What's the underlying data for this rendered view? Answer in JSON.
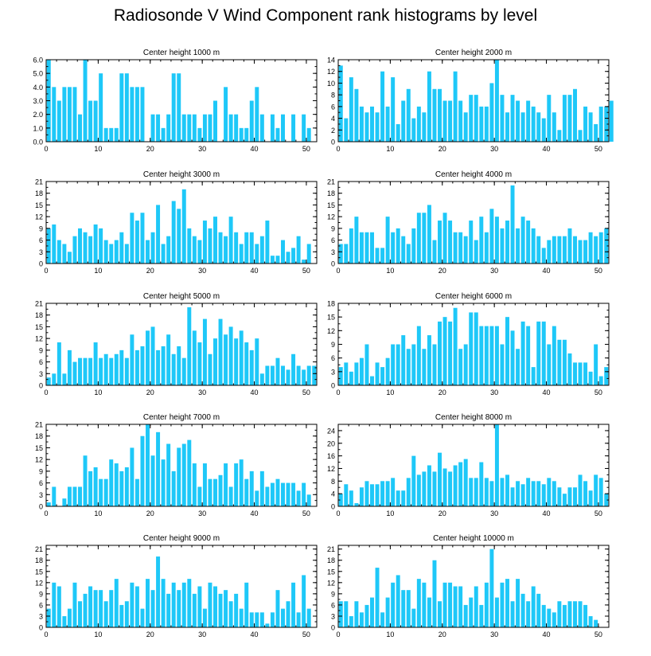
{
  "title": "Radiosonde V Wind Component rank histograms by level",
  "bar_color": "#1ec8f8",
  "chart_data": [
    {
      "type": "bar",
      "title": "Center height 1000 m",
      "xlabel": "",
      "ylabel": "",
      "xlim": [
        0,
        52
      ],
      "ylim": [
        0,
        6
      ],
      "yticks": [
        0,
        1,
        2,
        3,
        4,
        5,
        6
      ],
      "ytick_labels": [
        "0.0",
        "1.0",
        "2.0",
        "3.0",
        "4.0",
        "5.0",
        "6.0"
      ],
      "xticks": [
        0,
        10,
        20,
        30,
        40,
        50
      ],
      "values": [
        6,
        4,
        3,
        4,
        4,
        4,
        2,
        6,
        3,
        3,
        5,
        1,
        1,
        1,
        5,
        5,
        4,
        4,
        4,
        0,
        2,
        2,
        1,
        2,
        5,
        5,
        2,
        2,
        2,
        1,
        2,
        2,
        3,
        0,
        4,
        2,
        2,
        1,
        1,
        3,
        4,
        2,
        0,
        2,
        1,
        2,
        0,
        2,
        0,
        2,
        1
      ]
    },
    {
      "type": "bar",
      "title": "Center height 2000 m",
      "xlabel": "",
      "ylabel": "",
      "xlim": [
        0,
        52
      ],
      "ylim": [
        0,
        14
      ],
      "yticks": [
        0,
        2,
        4,
        6,
        8,
        10,
        12,
        14
      ],
      "ytick_labels": [
        "0",
        "2",
        "4",
        "6",
        "8",
        "10",
        "12",
        "14"
      ],
      "xticks": [
        0,
        10,
        20,
        30,
        40,
        50
      ],
      "values": [
        13,
        4,
        11,
        9,
        6,
        5,
        6,
        5,
        12,
        6,
        11,
        3,
        7,
        9,
        4,
        6,
        5,
        12,
        9,
        9,
        7,
        7,
        12,
        7,
        5,
        8,
        8,
        6,
        6,
        10,
        14,
        8,
        5,
        8,
        7,
        5,
        7,
        6,
        5,
        4,
        8,
        5,
        2,
        8,
        8,
        9,
        2,
        6,
        5,
        3,
        6,
        6,
        7
      ]
    },
    {
      "type": "bar",
      "title": "Center height 3000 m",
      "xlabel": "",
      "ylabel": "",
      "xlim": [
        0,
        52
      ],
      "ylim": [
        0,
        21
      ],
      "yticks": [
        0,
        3,
        6,
        9,
        12,
        15,
        18,
        21
      ],
      "ytick_labels": [
        "0",
        "3",
        "6",
        "9",
        "12",
        "15",
        "18",
        "21"
      ],
      "xticks": [
        0,
        10,
        20,
        30,
        40,
        50
      ],
      "values": [
        9,
        10,
        6,
        5,
        3,
        7,
        9,
        8,
        7,
        10,
        9,
        6,
        5,
        6,
        8,
        5,
        13,
        11,
        13,
        6,
        8,
        15,
        5,
        7,
        16,
        14,
        19,
        9,
        7,
        6,
        11,
        9,
        12,
        8,
        7,
        12,
        8,
        5,
        8,
        8,
        5,
        7,
        11,
        2,
        2,
        6,
        3,
        4,
        7,
        1,
        5
      ]
    },
    {
      "type": "bar",
      "title": "Center height 4000 m",
      "xlabel": "",
      "ylabel": "",
      "xlim": [
        0,
        52
      ],
      "ylim": [
        0,
        21
      ],
      "yticks": [
        0,
        3,
        6,
        9,
        12,
        15,
        18,
        21
      ],
      "ytick_labels": [
        "0",
        "3",
        "6",
        "9",
        "12",
        "15",
        "18",
        "21"
      ],
      "xticks": [
        0,
        10,
        20,
        30,
        40,
        50
      ],
      "values": [
        5,
        5,
        9,
        12,
        8,
        8,
        8,
        4,
        4,
        12,
        8,
        9,
        7,
        5,
        9,
        13,
        13,
        15,
        6,
        11,
        13,
        11,
        8,
        8,
        7,
        11,
        6,
        12,
        8,
        14,
        12,
        9,
        11,
        20,
        9,
        12,
        11,
        9,
        7,
        4,
        6,
        7,
        7,
        7,
        9,
        7,
        6,
        6,
        8,
        7,
        8,
        9
      ]
    },
    {
      "type": "bar",
      "title": "Center height 5000 m",
      "xlabel": "",
      "ylabel": "",
      "xlim": [
        0,
        52
      ],
      "ylim": [
        0,
        21
      ],
      "yticks": [
        0,
        3,
        6,
        9,
        12,
        15,
        18,
        21
      ],
      "ytick_labels": [
        "0",
        "3",
        "6",
        "9",
        "12",
        "15",
        "18",
        "21"
      ],
      "xticks": [
        0,
        10,
        20,
        30,
        40,
        50
      ],
      "values": [
        2,
        3,
        11,
        3,
        9,
        6,
        7,
        7,
        7,
        11,
        7,
        8,
        7,
        8,
        9,
        7,
        13,
        9,
        10,
        14,
        15,
        9,
        10,
        13,
        8,
        10,
        7,
        20,
        14,
        11,
        17,
        8,
        12,
        17,
        13,
        15,
        12,
        14,
        11,
        9,
        12,
        3,
        5,
        5,
        7,
        5,
        4,
        8,
        5,
        4,
        5,
        5
      ]
    },
    {
      "type": "bar",
      "title": "Center height 6000 m",
      "xlabel": "",
      "ylabel": "",
      "xlim": [
        0,
        52
      ],
      "ylim": [
        0,
        18
      ],
      "yticks": [
        0,
        3,
        6,
        9,
        12,
        15,
        18
      ],
      "ytick_labels": [
        "0",
        "3",
        "6",
        "9",
        "12",
        "15",
        "18"
      ],
      "xticks": [
        0,
        10,
        20,
        30,
        40,
        50
      ],
      "values": [
        4,
        5,
        3,
        5,
        6,
        9,
        2,
        5,
        4,
        6,
        9,
        9,
        11,
        8,
        9,
        13,
        8,
        11,
        9,
        14,
        15,
        14,
        17,
        8,
        9,
        16,
        16,
        13,
        13,
        13,
        13,
        9,
        15,
        12,
        8,
        14,
        13,
        4,
        14,
        14,
        9,
        13,
        10,
        10,
        7,
        5,
        5,
        5,
        3,
        9,
        2,
        4
      ]
    },
    {
      "type": "bar",
      "title": "Center height 7000 m",
      "xlabel": "",
      "ylabel": "",
      "xlim": [
        0,
        52
      ],
      "ylim": [
        0,
        21
      ],
      "yticks": [
        0,
        3,
        6,
        9,
        12,
        15,
        18,
        21
      ],
      "ytick_labels": [
        "0",
        "3",
        "6",
        "9",
        "12",
        "15",
        "18",
        "21"
      ],
      "xticks": [
        0,
        10,
        20,
        30,
        40,
        50
      ],
      "values": [
        1,
        5,
        0,
        2,
        5,
        5,
        5,
        13,
        9,
        10,
        7,
        7,
        12,
        11,
        9,
        10,
        15,
        7,
        18,
        21,
        13,
        19,
        12,
        16,
        9,
        15,
        16,
        17,
        11,
        5,
        11,
        7,
        7,
        8,
        11,
        5,
        11,
        12,
        7,
        9,
        4,
        9,
        5,
        6,
        7,
        6,
        6,
        6,
        4,
        6,
        3
      ]
    },
    {
      "type": "bar",
      "title": "Center height 8000 m",
      "xlabel": "",
      "ylabel": "",
      "xlim": [
        0,
        52
      ],
      "ylim": [
        0,
        26
      ],
      "yticks": [
        0,
        4,
        8,
        12,
        16,
        20,
        24
      ],
      "ytick_labels": [
        "0",
        "4",
        "8",
        "12",
        "16",
        "20",
        "24"
      ],
      "xticks": [
        0,
        10,
        20,
        30,
        40,
        50
      ],
      "values": [
        4,
        7,
        5,
        1,
        6,
        8,
        7,
        7,
        8,
        8,
        9,
        5,
        5,
        9,
        16,
        10,
        11,
        13,
        11,
        17,
        12,
        11,
        13,
        14,
        15,
        9,
        9,
        14,
        9,
        8,
        26,
        9,
        10,
        6,
        8,
        7,
        9,
        8,
        8,
        7,
        9,
        8,
        6,
        4,
        6,
        6,
        10,
        8,
        5,
        10,
        9,
        4
      ]
    },
    {
      "type": "bar",
      "title": "Center height 9000 m",
      "xlabel": "",
      "ylabel": "",
      "xlim": [
        0,
        52
      ],
      "ylim": [
        0,
        22
      ],
      "yticks": [
        0,
        3,
        6,
        9,
        12,
        15,
        18,
        21
      ],
      "ytick_labels": [
        "0",
        "3",
        "6",
        "9",
        "12",
        "15",
        "18",
        "21"
      ],
      "xticks": [
        0,
        10,
        20,
        30,
        40,
        50
      ],
      "values": [
        5,
        12,
        11,
        3,
        5,
        12,
        7,
        9,
        11,
        10,
        10,
        7,
        10,
        13,
        6,
        7,
        12,
        11,
        5,
        13,
        10,
        19,
        13,
        9,
        12,
        10,
        12,
        13,
        9,
        11,
        5,
        12,
        11,
        9,
        10,
        7,
        9,
        5,
        12,
        4,
        4,
        4,
        1,
        4,
        10,
        5,
        7,
        12,
        4,
        14,
        5
      ]
    },
    {
      "type": "bar",
      "title": "Center height 10000 m",
      "xlabel": "",
      "ylabel": "",
      "xlim": [
        0,
        52
      ],
      "ylim": [
        0,
        22
      ],
      "yticks": [
        0,
        3,
        6,
        9,
        12,
        15,
        18,
        21
      ],
      "ytick_labels": [
        "0",
        "3",
        "6",
        "9",
        "12",
        "15",
        "18",
        "21"
      ],
      "xticks": [
        0,
        10,
        20,
        30,
        40,
        50
      ],
      "values": [
        7,
        7,
        3,
        7,
        4,
        6,
        8,
        16,
        4,
        8,
        12,
        14,
        10,
        10,
        5,
        13,
        12,
        8,
        18,
        7,
        12,
        12,
        11,
        11,
        6,
        8,
        11,
        6,
        12,
        21,
        8,
        12,
        13,
        7,
        13,
        9,
        7,
        11,
        9,
        6,
        5,
        4,
        7,
        6,
        7,
        7,
        7,
        6,
        3,
        2
      ]
    }
  ]
}
